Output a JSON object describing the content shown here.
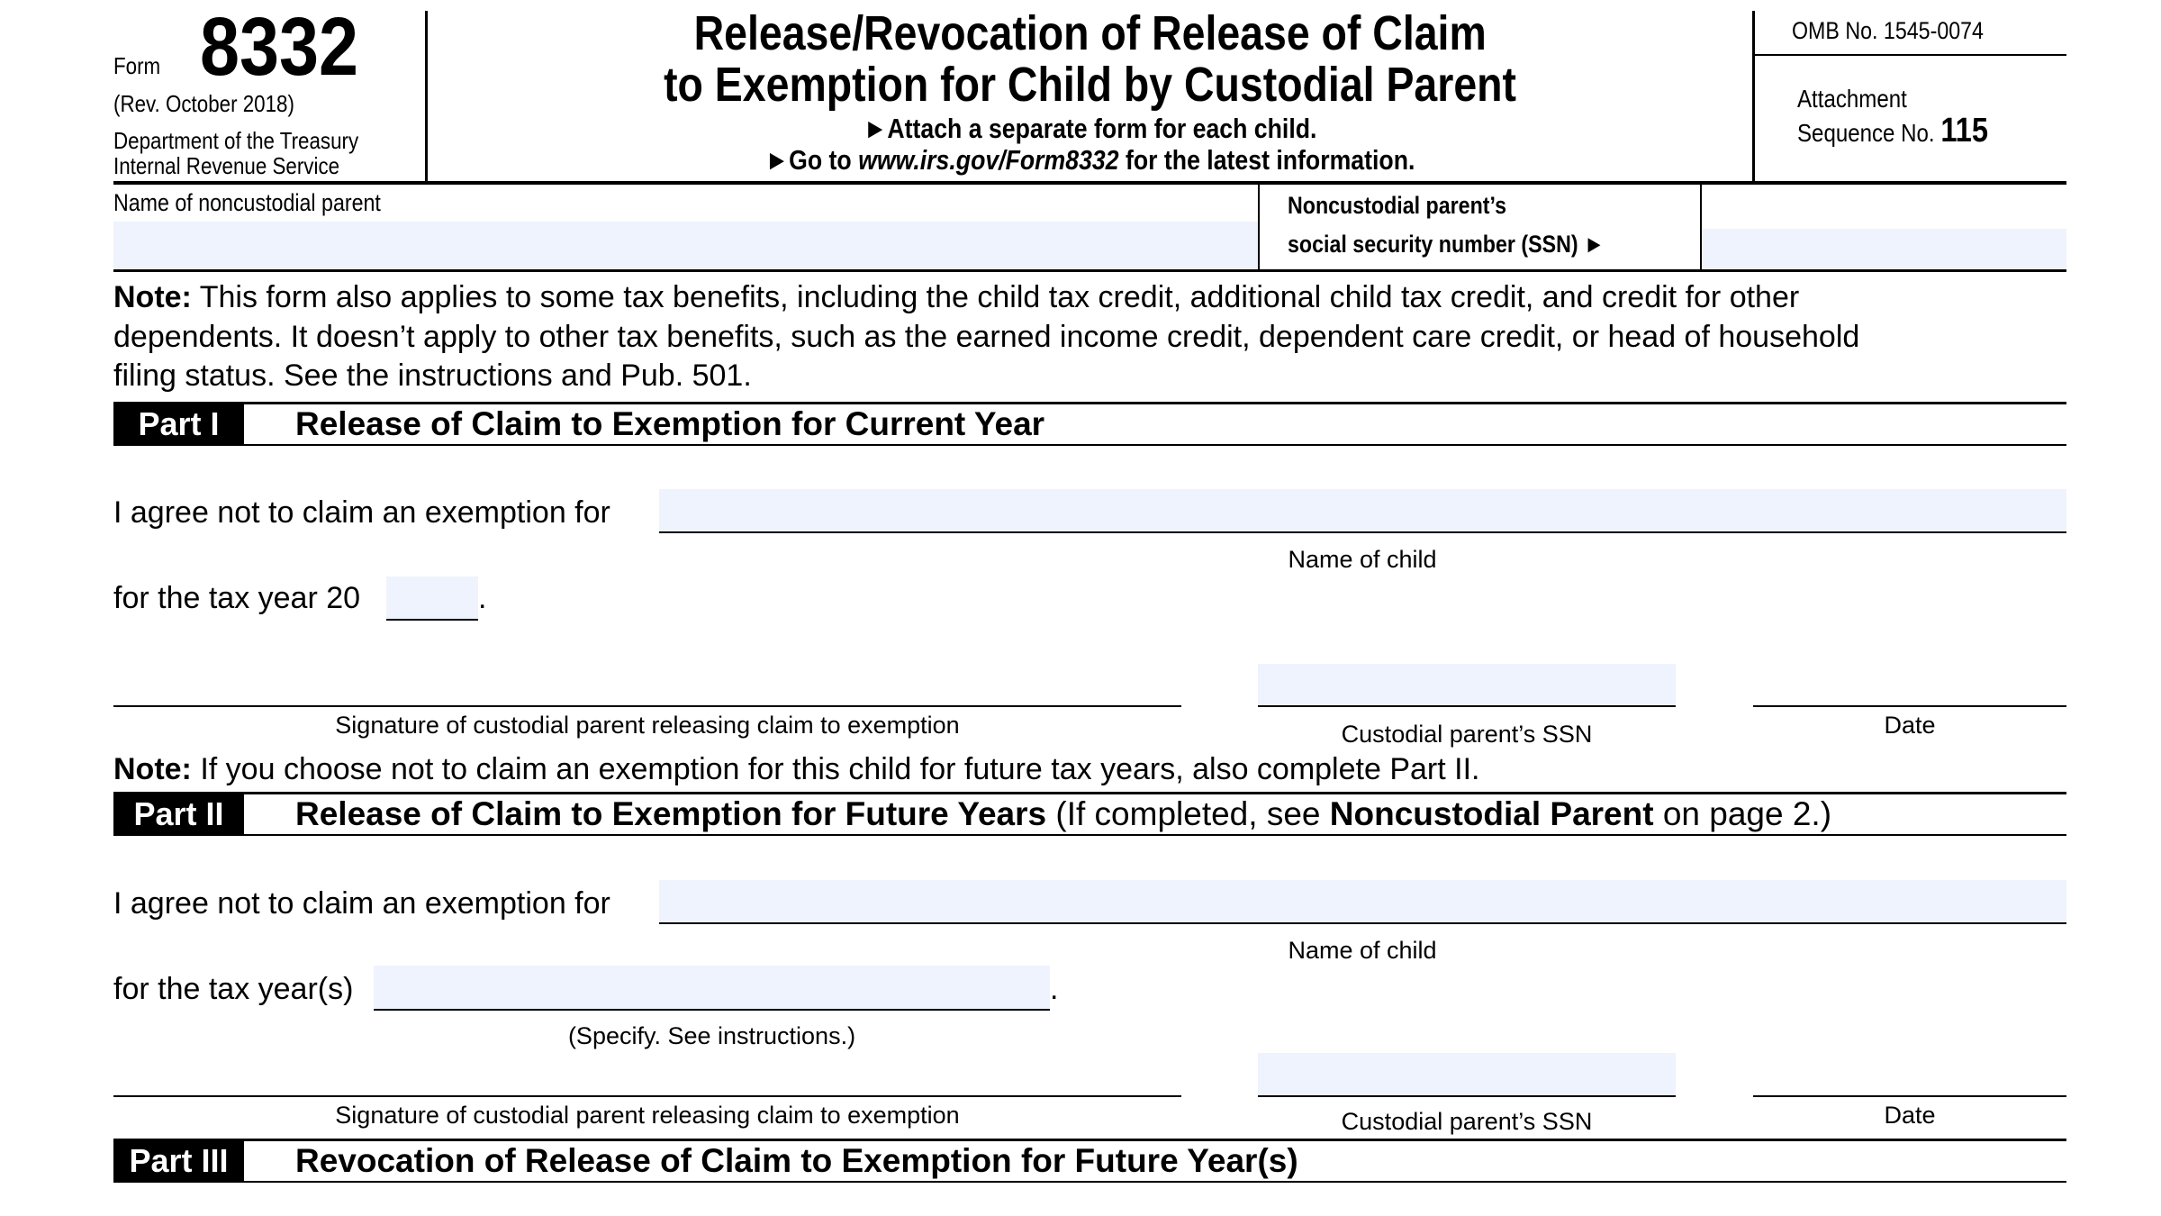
{
  "header": {
    "form_label": "Form",
    "form_number": "8332",
    "revision": "(Rev. October 2018)",
    "department": "Department of the Treasury",
    "agency": "Internal Revenue Service",
    "title_line1": "Release/Revocation of Release of Claim",
    "title_line2": "to Exemption for Child by Custodial Parent",
    "instruction1": "Attach a separate form for each child.",
    "instruction2_prefix": "Go to ",
    "instruction2_url": "www.irs.gov/Form8332",
    "instruction2_suffix": " for the latest information.",
    "omb": "OMB No. 1545-0074",
    "attachment": "Attachment",
    "sequence_label": "Sequence No.",
    "sequence_number": "115"
  },
  "top_fields": {
    "name_label": "Name of noncustodial parent",
    "name_value": "",
    "ssn_label_line1": "Noncustodial parent’s",
    "ssn_label_line2": "social security number (SSN) ►",
    "ssn_value": ""
  },
  "note1": {
    "label": "Note:",
    "line1": " This form also applies to some tax benefits, including the child tax credit, additional child tax credit, and credit for other",
    "line2": "dependents. It doesn’t apply to other tax benefits, such as the earned income credit, dependent care credit, or head of household",
    "line3": "filing status. See the instructions and Pub. 501."
  },
  "part1": {
    "label": "Part I",
    "title": "Release of Claim to Exemption for Current Year",
    "agree_text": "I agree not to claim an exemption for",
    "child_name_value": "",
    "child_caption": "Name of child",
    "tax_year_text": "for the tax year 20",
    "tax_year_value": "",
    "period": ".",
    "signature_caption": "Signature of custodial parent releasing claim to exemption",
    "ssn_caption": "Custodial parent’s SSN",
    "date_caption": "Date"
  },
  "note2": {
    "label": "Note:",
    "text": " If you choose not to claim an exemption for this child for future tax years, also complete Part II."
  },
  "part2": {
    "label": "Part II",
    "title": "Release of Claim to Exemption for Future Years",
    "title_note_prefix": " (If completed, see ",
    "title_note_bold": "Noncustodial Parent",
    "title_note_suffix": " on page 2.)",
    "agree_text": "I agree not to claim an exemption for",
    "child_name_value": "",
    "child_caption": "Name of child",
    "tax_years_text": "for the tax year(s)",
    "tax_years_value": "",
    "period": ".",
    "tax_years_caption": "(Specify. See instructions.)",
    "signature_caption": "Signature of custodial parent releasing claim to exemption",
    "ssn_caption": "Custodial parent’s SSN",
    "date_caption": "Date"
  },
  "part3": {
    "label": "Part III",
    "title": "Revocation of Release of Claim to Exemption for Future Year(s)"
  },
  "colors": {
    "field_fill": "#eef3fd",
    "part_label_bg": "#000000"
  }
}
